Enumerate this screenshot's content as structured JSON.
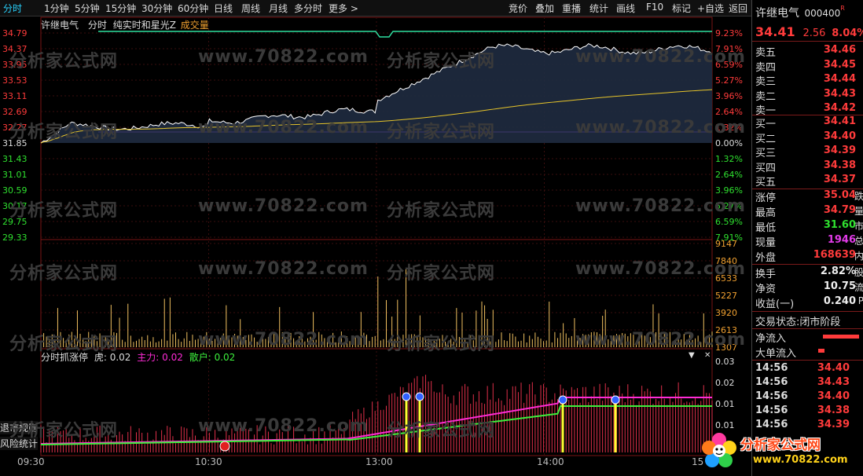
{
  "menubar": {
    "tabs": [
      "分时",
      "1分钟",
      "5分钟",
      "15分钟",
      "30分钟",
      "60分钟",
      "日线",
      "周线",
      "月线",
      "多分时",
      "更多 >"
    ],
    "tools": [
      "竞价",
      "叠加",
      "重播",
      "统计",
      "画线",
      "F10",
      "标记",
      "+自选",
      "返回"
    ]
  },
  "chart_header": {
    "name": "许继电气",
    "mode": "分时",
    "indicator": "纯实时和星光Z",
    "volume_label": "成交量"
  },
  "price_axis": {
    "left": [
      "34.79",
      "34.37",
      "33.95",
      "33.53",
      "33.11",
      "32.69",
      "32.27",
      "31.85",
      "31.43",
      "31.01",
      "30.59",
      "30.17",
      "29.75",
      "29.33"
    ],
    "right": [
      "9.23%",
      "7.91%",
      "6.59%",
      "5.27%",
      "3.96%",
      "2.64%",
      "1.32%",
      "0.00%",
      "1.32%",
      "2.64%",
      "3.96%",
      "5.27%",
      "6.59%",
      "7.91%"
    ]
  },
  "volume_axis": [
    "9147",
    "7840",
    "6533",
    "5227",
    "3920",
    "2613",
    "1307"
  ],
  "indicator_panel": {
    "title": "分时抓涨停",
    "tiger_label": "虎:",
    "tiger_value": "0.02",
    "main_label": "主力:",
    "main_value": "0.02",
    "retail_label": "散户:",
    "retail_value": "0.02",
    "axis": [
      "0.03",
      "0.02",
      "0.01",
      "0.01"
    ],
    "side_labels": [
      "退市规则",
      "风险统计"
    ]
  },
  "time_axis": [
    "09:30",
    "10:30",
    "13:00",
    "14:00",
    "15"
  ],
  "colors": {
    "price_line": "#ffffff",
    "avg_line": "#e6c42a",
    "up": "#ff3b3b",
    "down": "#2fe02f",
    "main_line": "#ff2bd6",
    "retail_line": "#3df03d",
    "limit_line": "#2fe0a0",
    "prev_close_line": "#b050ff"
  },
  "quote": {
    "name": "许继电气",
    "code": "000400",
    "code_badge": "R",
    "price": "34.41",
    "change": "2.56",
    "change_pct": "8.04%",
    "asks": [
      {
        "label": "卖五",
        "price": "34.46"
      },
      {
        "label": "卖四",
        "price": "34.45"
      },
      {
        "label": "卖三",
        "price": "34.44"
      },
      {
        "label": "卖二",
        "price": "34.43"
      },
      {
        "label": "卖一",
        "price": "34.42"
      }
    ],
    "bids": [
      {
        "label": "买一",
        "price": "34.41"
      },
      {
        "label": "买二",
        "price": "34.40"
      },
      {
        "label": "买三",
        "price": "34.39"
      },
      {
        "label": "买四",
        "price": "34.38"
      },
      {
        "label": "买五",
        "price": "34.37"
      }
    ],
    "stats": [
      {
        "label": "涨停",
        "value": "35.04",
        "extra": "跌",
        "color": "red"
      },
      {
        "label": "最高",
        "value": "34.79",
        "extra": "量",
        "color": "red"
      },
      {
        "label": "最低",
        "value": "31.60",
        "extra": "市",
        "color": "green"
      },
      {
        "label": "现量",
        "value": "1946",
        "extra": "总",
        "color": "magenta"
      },
      {
        "label": "外盘",
        "value": "168639",
        "extra": "内",
        "color": "red"
      }
    ],
    "stats2": [
      {
        "label": "换手",
        "value": "2.82%",
        "extra": "股",
        "color": "white"
      },
      {
        "label": "净资",
        "value": "10.75",
        "extra": "流",
        "color": "white"
      },
      {
        "label": "收益(一)",
        "value": "0.240",
        "extra": "P",
        "color": "white"
      }
    ],
    "trade_status_label": "交易状态:",
    "trade_status_value": "闭市阶段",
    "net_inflow_label": "净流入",
    "large_inflow_label": "大单流入",
    "ticks": [
      {
        "time": "14:56",
        "price": "34.40"
      },
      {
        "time": "14:56",
        "price": "34.43"
      },
      {
        "time": "14:56",
        "price": "34.40"
      },
      {
        "time": "14:56",
        "price": "34.38"
      },
      {
        "time": "14:56",
        "price": "34.39"
      }
    ]
  },
  "watermark": {
    "text": "分析家公式网",
    "url": "www.70822.com",
    "logo_text": "分析家公式网",
    "logo_url": "www.70822.com"
  }
}
